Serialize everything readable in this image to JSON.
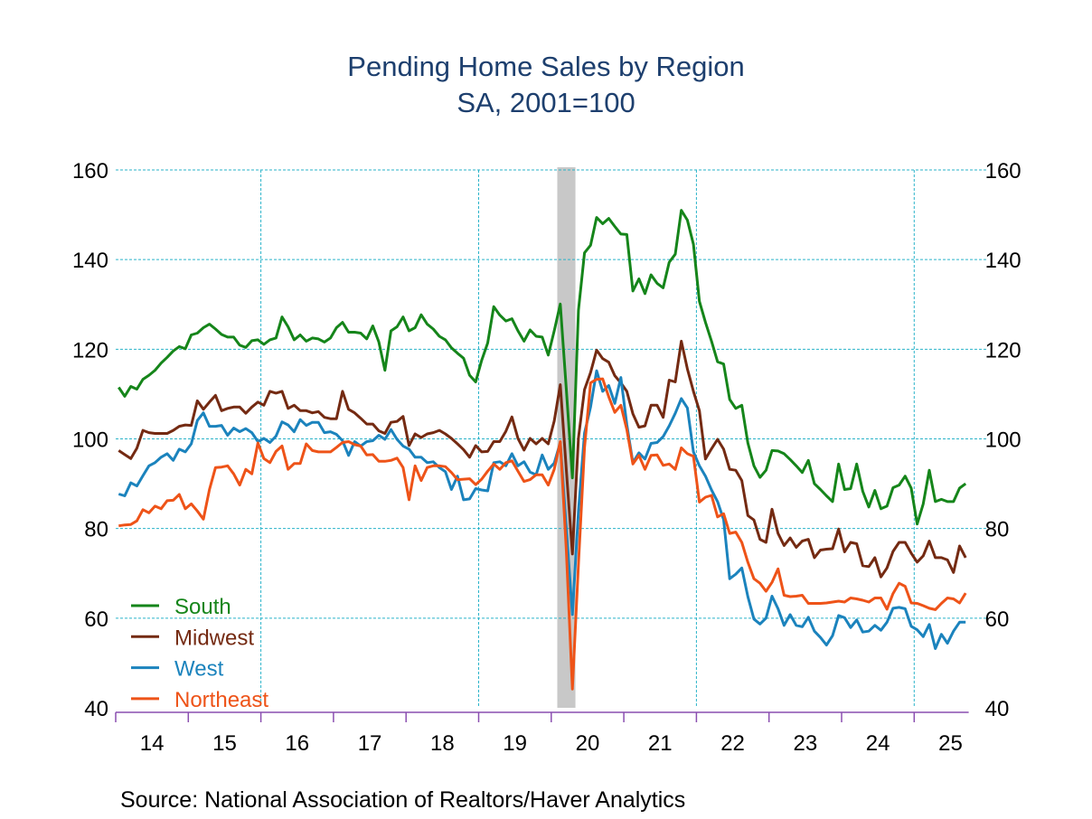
{
  "chart_data": {
    "type": "line",
    "title": "Pending Home Sales by Region",
    "subtitle": "SA, 2001=100",
    "source": "Source:  National Association of Realtors/Haver Analytics",
    "xlabel": "",
    "ylabel": "",
    "ylim": [
      40,
      160
    ],
    "y_ticks": [
      "40",
      "60",
      "80",
      "100",
      "120",
      "140",
      "160"
    ],
    "x_tick_labels": [
      "14",
      "15",
      "16",
      "17",
      "18",
      "19",
      "20",
      "21",
      "22",
      "23",
      "24",
      "25"
    ],
    "grid": true,
    "legend_position": "bottom-left",
    "recession_shading": {
      "from": "2020-02",
      "to": "2020-04",
      "color": "#c8c8c8"
    },
    "colors": {
      "grid": "#2ab3c9",
      "x_axis": "#8a4fb0",
      "title": "#1d3f6e"
    },
    "x": [
      "2014-01",
      "2014-02",
      "2014-03",
      "2014-04",
      "2014-05",
      "2014-06",
      "2014-07",
      "2014-08",
      "2014-09",
      "2014-10",
      "2014-11",
      "2014-12",
      "2015-01",
      "2015-02",
      "2015-03",
      "2015-04",
      "2015-05",
      "2015-06",
      "2015-07",
      "2015-08",
      "2015-09",
      "2015-10",
      "2015-11",
      "2015-12",
      "2016-01",
      "2016-02",
      "2016-03",
      "2016-04",
      "2016-05",
      "2016-06",
      "2016-07",
      "2016-08",
      "2016-09",
      "2016-10",
      "2016-11",
      "2016-12",
      "2017-01",
      "2017-02",
      "2017-03",
      "2017-04",
      "2017-05",
      "2017-06",
      "2017-07",
      "2017-08",
      "2017-09",
      "2017-10",
      "2017-11",
      "2017-12",
      "2018-01",
      "2018-02",
      "2018-03",
      "2018-04",
      "2018-05",
      "2018-06",
      "2018-07",
      "2018-08",
      "2018-09",
      "2018-10",
      "2018-11",
      "2018-12",
      "2019-01",
      "2019-02",
      "2019-03",
      "2019-04",
      "2019-05",
      "2019-06",
      "2019-07",
      "2019-08",
      "2019-09",
      "2019-10",
      "2019-11",
      "2019-12",
      "2020-01",
      "2020-02",
      "2020-03",
      "2020-04",
      "2020-05",
      "2020-06",
      "2020-07",
      "2020-08",
      "2020-09",
      "2020-10",
      "2020-11",
      "2020-12",
      "2021-01",
      "2021-02",
      "2021-03",
      "2021-04",
      "2021-05",
      "2021-06",
      "2021-07",
      "2021-08",
      "2021-09",
      "2021-10",
      "2021-11",
      "2021-12",
      "2022-01",
      "2022-02",
      "2022-03",
      "2022-04",
      "2022-05",
      "2022-06",
      "2022-07",
      "2022-08",
      "2022-09",
      "2022-10",
      "2022-11",
      "2022-12",
      "2023-01",
      "2023-02",
      "2023-03",
      "2023-04",
      "2023-05",
      "2023-06",
      "2023-07",
      "2023-08",
      "2023-09",
      "2023-10",
      "2023-11",
      "2023-12",
      "2024-01",
      "2024-02",
      "2024-03",
      "2024-04",
      "2024-05",
      "2024-06",
      "2024-07",
      "2024-08",
      "2024-09",
      "2024-10",
      "2024-11",
      "2024-12",
      "2025-01",
      "2025-02",
      "2025-03",
      "2025-04",
      "2025-05",
      "2025-06",
      "2025-07",
      "2025-08",
      "2025-09"
    ],
    "series": [
      {
        "name": "South",
        "color": "#15851a",
        "values": [
          111.5,
          109.5,
          111.7,
          111.1,
          113.3,
          114.2,
          115.3,
          116.9,
          118.2,
          119.6,
          120.6,
          120.1,
          123.2,
          123.6,
          124.8,
          125.6,
          124.5,
          123.3,
          122.7,
          122.7,
          120.9,
          120.4,
          121.9,
          122.1,
          121.1,
          122.1,
          122.5,
          127.2,
          125.0,
          122.1,
          123.2,
          121.8,
          122.5,
          122.3,
          121.6,
          122.5,
          124.8,
          126.0,
          123.8,
          123.8,
          123.6,
          122.3,
          125.2,
          121.6,
          115.3,
          124.1,
          125.0,
          127.2,
          124.1,
          124.8,
          127.7,
          125.6,
          124.5,
          122.9,
          122.1,
          120.3,
          119.1,
          118.0,
          114.2,
          112.7,
          117.5,
          121.4,
          129.5,
          127.6,
          126.3,
          126.8,
          124.1,
          121.8,
          124.3,
          122.9,
          122.7,
          118.7,
          124.1,
          130.1,
          111.0,
          91.3,
          128.7,
          141.5,
          143.2,
          149.4,
          148.0,
          149.2,
          147.4,
          145.7,
          145.6,
          133.0,
          135.7,
          132.4,
          136.6,
          134.7,
          133.7,
          139.4,
          141.2,
          151.0,
          148.8,
          143.4,
          130.7,
          126.0,
          121.8,
          117.2,
          116.7,
          108.8,
          106.8,
          107.5,
          99.1,
          94.0,
          91.4,
          93.0,
          97.4,
          97.3,
          96.7,
          95.4,
          94.0,
          92.5,
          95.2,
          90.0,
          88.7,
          87.3,
          86.0,
          94.4,
          88.7,
          88.9,
          94.4,
          88.3,
          84.8,
          88.5,
          84.4,
          85.0,
          89.1,
          89.7,
          91.7,
          89.0,
          81.0,
          85.5,
          93.0,
          86.0,
          86.5,
          86.0,
          86.0,
          89.0,
          90.0
        ]
      },
      {
        "name": "Midwest",
        "color": "#742a12",
        "values": [
          97.4,
          96.5,
          95.6,
          97.9,
          101.9,
          101.4,
          101.2,
          101.2,
          101.2,
          101.9,
          102.8,
          103.1,
          103.0,
          108.5,
          106.6,
          108.2,
          109.7,
          106.3,
          106.8,
          107.1,
          107.1,
          105.7,
          107.1,
          108.2,
          107.5,
          110.6,
          110.2,
          110.6,
          106.8,
          107.5,
          106.3,
          106.3,
          105.8,
          106.1,
          104.8,
          104.5,
          104.5,
          110.6,
          106.6,
          105.8,
          104.6,
          103.3,
          103.3,
          101.8,
          101.2,
          103.7,
          103.9,
          105.0,
          98.5,
          101.1,
          100.3,
          101.1,
          101.4,
          101.9,
          101.1,
          100.1,
          98.9,
          97.6,
          95.9,
          98.5,
          97.1,
          97.2,
          99.4,
          99.4,
          101.7,
          104.9,
          100.1,
          97.5,
          100.1,
          98.9,
          100.1,
          98.9,
          104.0,
          112.1,
          93.0,
          74.3,
          100.2,
          111.0,
          114.8,
          119.8,
          117.9,
          117.1,
          114.1,
          112.5,
          110.6,
          105.6,
          102.6,
          102.9,
          107.5,
          107.5,
          104.8,
          113.1,
          112.7,
          121.8,
          115.6,
          110.6,
          106.3,
          95.5,
          97.8,
          99.9,
          97.7,
          93.2,
          93.0,
          90.7,
          82.9,
          81.9,
          77.6,
          76.9,
          84.3,
          78.9,
          76.2,
          77.9,
          75.8,
          77.2,
          77.6,
          73.5,
          75.2,
          75.4,
          75.5,
          79.9,
          74.8,
          76.9,
          76.6,
          71.7,
          71.5,
          73.5,
          69.2,
          71.2,
          74.9,
          76.9,
          76.9,
          74.5,
          72.5,
          73.9,
          77.2,
          73.5,
          73.5,
          73.0,
          70.2,
          76.1,
          73.5
        ]
      },
      {
        "name": "West",
        "color": "#1b83bd",
        "values": [
          87.7,
          87.3,
          90.2,
          89.5,
          91.8,
          94.0,
          94.7,
          95.9,
          96.7,
          95.2,
          97.7,
          97.1,
          98.9,
          104.1,
          105.8,
          102.8,
          102.8,
          103.0,
          100.8,
          102.4,
          101.6,
          102.3,
          101.4,
          99.4,
          100.1,
          99.2,
          100.6,
          103.8,
          103.1,
          101.6,
          104.3,
          103.0,
          103.7,
          103.7,
          101.4,
          101.6,
          101.0,
          99.6,
          96.3,
          99.4,
          98.4,
          99.4,
          99.6,
          100.8,
          99.9,
          102.1,
          99.9,
          98.4,
          97.7,
          95.9,
          95.9,
          94.7,
          94.9,
          93.6,
          92.7,
          88.7,
          91.7,
          86.4,
          86.6,
          88.9,
          88.6,
          88.4,
          94.7,
          94.9,
          94.0,
          96.7,
          94.0,
          94.9,
          92.6,
          92.0,
          96.4,
          93.2,
          94.6,
          99.2,
          80.0,
          60.8,
          83.9,
          101.3,
          107.1,
          115.2,
          110.6,
          111.9,
          107.9,
          113.7,
          103.2,
          94.7,
          96.9,
          95.5,
          99.0,
          99.2,
          100.5,
          102.9,
          105.7,
          109.0,
          106.9,
          97.1,
          94.0,
          91.7,
          88.6,
          86.0,
          82.0,
          68.8,
          69.8,
          71.2,
          64.8,
          59.8,
          58.7,
          60.0,
          64.9,
          62.1,
          58.4,
          60.8,
          58.4,
          58.1,
          60.2,
          57.1,
          55.7,
          54.0,
          56.1,
          60.6,
          60.1,
          57.9,
          59.6,
          56.9,
          57.1,
          58.4,
          57.3,
          59.1,
          62.2,
          62.4,
          62.1,
          58.2,
          57.4,
          55.9,
          58.6,
          53.2,
          56.4,
          54.4,
          57.1,
          59.1,
          59.1
        ]
      },
      {
        "name": "Northeast",
        "color": "#ee5318",
        "values": [
          80.6,
          80.8,
          80.9,
          81.7,
          84.2,
          83.5,
          85.0,
          84.4,
          86.2,
          86.3,
          87.6,
          84.4,
          85.5,
          83.9,
          82.1,
          88.7,
          93.6,
          93.7,
          94.0,
          92.2,
          89.7,
          93.2,
          92.2,
          99.1,
          95.6,
          94.7,
          97.2,
          98.4,
          93.2,
          94.5,
          94.5,
          98.9,
          97.4,
          97.1,
          97.1,
          97.1,
          98.1,
          99.2,
          99.4,
          98.7,
          98.4,
          96.4,
          96.5,
          95.0,
          95.0,
          95.2,
          95.7,
          93.6,
          86.4,
          94.0,
          90.7,
          93.6,
          94.0,
          94.0,
          93.8,
          92.5,
          90.9,
          91.0,
          91.1,
          89.8,
          91.0,
          92.8,
          94.4,
          93.2,
          94.7,
          95.1,
          92.8,
          90.5,
          90.9,
          92.0,
          92.0,
          89.7,
          93.2,
          99.4,
          75.0,
          44.2,
          72.0,
          98.0,
          112.5,
          113.3,
          113.4,
          109.4,
          105.9,
          107.5,
          102.1,
          94.4,
          96.3,
          93.2,
          96.3,
          96.4,
          94.1,
          94.4,
          93.2,
          98.0,
          96.7,
          96.1,
          85.9,
          87.0,
          87.4,
          82.6,
          83.3,
          78.9,
          79.2,
          76.9,
          72.5,
          68.8,
          67.8,
          66.0,
          68.0,
          71.0,
          65.1,
          64.8,
          64.9,
          65.1,
          63.3,
          63.3,
          63.3,
          63.4,
          63.6,
          63.8,
          63.6,
          64.5,
          64.3,
          64.0,
          63.6,
          64.5,
          64.5,
          62.0,
          65.5,
          67.8,
          67.1,
          63.4,
          63.3,
          62.8,
          62.2,
          61.9,
          63.3,
          64.5,
          64.3,
          63.4,
          65.6
        ]
      }
    ]
  }
}
